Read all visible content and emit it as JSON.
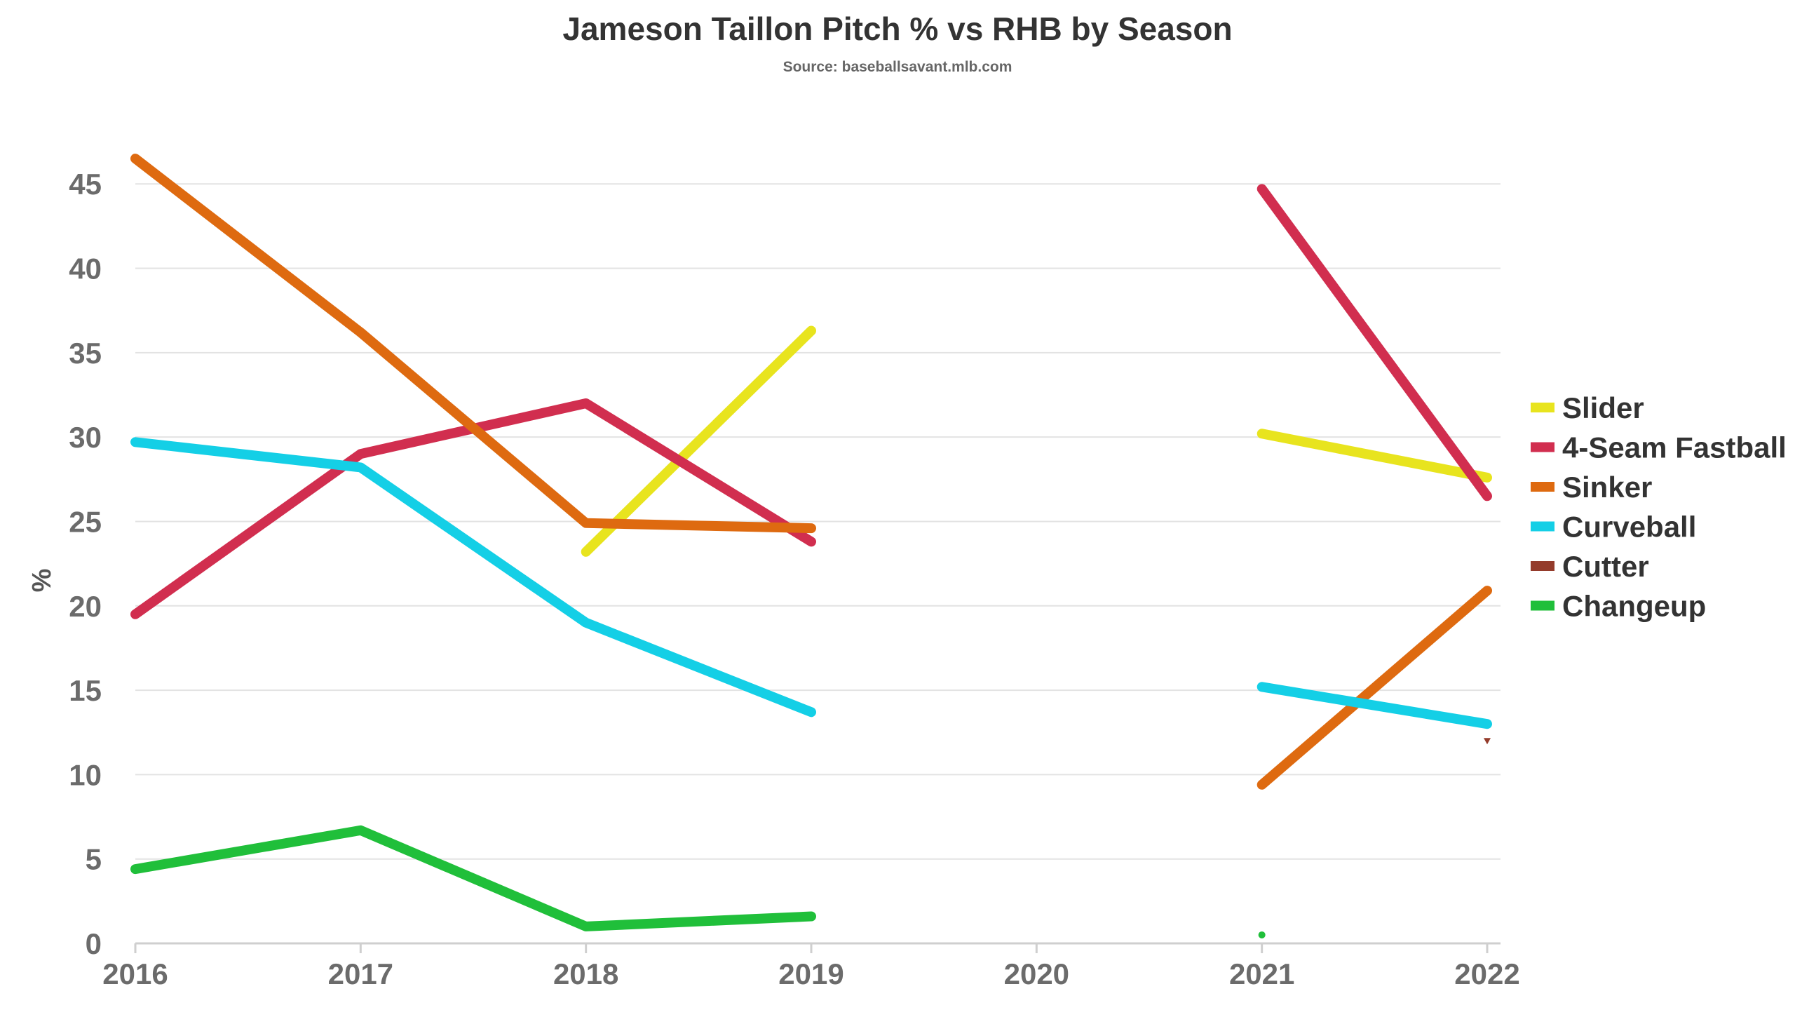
{
  "chart_data": {
    "type": "line",
    "title": "Jameson Taillon Pitch % vs RHB by Season",
    "subtitle": "Source: baseballsavant.mlb.com",
    "xlabel": "",
    "ylabel": "%",
    "x": [
      "2016",
      "2017",
      "2018",
      "2019",
      "2020",
      "2021",
      "2022"
    ],
    "yticks": [
      "0",
      "5",
      "10",
      "15",
      "20",
      "25",
      "30",
      "35",
      "40",
      "45"
    ],
    "ylim": [
      0,
      48
    ],
    "grid": true,
    "legend_position": "right",
    "series": [
      {
        "name": "Slider",
        "color": "#e8e41e",
        "values": [
          null,
          null,
          23.2,
          36.3,
          null,
          30.2,
          27.6
        ]
      },
      {
        "name": "4-Seam Fastball",
        "color": "#d12e4f",
        "values": [
          19.5,
          29.0,
          32.0,
          23.8,
          null,
          44.7,
          26.5
        ]
      },
      {
        "name": "Sinker",
        "color": "#de6a10",
        "values": [
          46.5,
          36.2,
          24.9,
          24.6,
          null,
          9.4,
          20.9
        ]
      },
      {
        "name": "Curveball",
        "color": "#14cfe6",
        "values": [
          29.7,
          28.2,
          19.0,
          13.7,
          null,
          15.2,
          13.0
        ]
      },
      {
        "name": "Cutter",
        "color": "#943b2b",
        "values": [
          null,
          null,
          null,
          null,
          null,
          null,
          12.0
        ]
      },
      {
        "name": "Changeup",
        "color": "#20bf3a",
        "values": [
          4.4,
          6.7,
          1.0,
          1.6,
          null,
          0.5,
          null
        ]
      }
    ]
  }
}
